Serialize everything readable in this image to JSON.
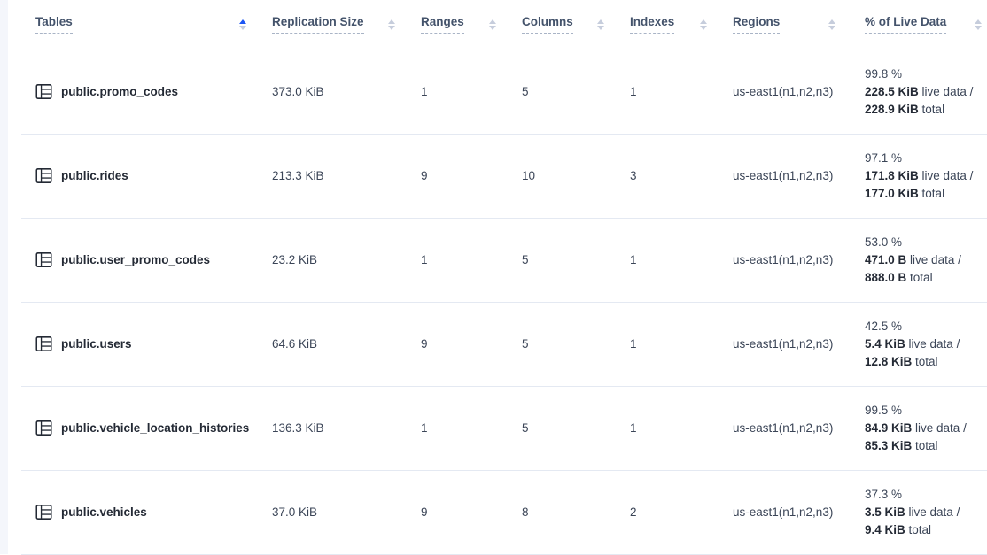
{
  "colors": {
    "accent_blue": "#1d56f4",
    "header_text": "#44536b",
    "body_text": "#3b4557",
    "table_name_text": "#242a35",
    "row_border": "#e4e9f2",
    "dashed_underline": "#a9b4c6",
    "inactive_sort_arrow": "#c6cddc",
    "left_strip": "#f4f6fb"
  },
  "table": {
    "columns": [
      {
        "label": "Tables",
        "sort": "asc"
      },
      {
        "label": "Replication Size",
        "sort": "none"
      },
      {
        "label": "Ranges",
        "sort": "none"
      },
      {
        "label": "Columns",
        "sort": "none"
      },
      {
        "label": "Indexes",
        "sort": "none"
      },
      {
        "label": "Regions",
        "sort": "none"
      },
      {
        "label": "% of Live Data",
        "sort": "none"
      }
    ],
    "rows": [
      {
        "icon": "table-icon",
        "name": "public.promo_codes",
        "replication_size": "373.0 KiB",
        "ranges": "1",
        "columns": "5",
        "indexes": "1",
        "regions": "us-east1(n1,n2,n3)",
        "live": {
          "percent": "99.8 %",
          "live_size": "228.5 KiB",
          "live_label": " live data /",
          "total_size": "228.9 KiB",
          "total_label": " total"
        }
      },
      {
        "icon": "table-icon",
        "name": "public.rides",
        "replication_size": "213.3 KiB",
        "ranges": "9",
        "columns": "10",
        "indexes": "3",
        "regions": "us-east1(n1,n2,n3)",
        "live": {
          "percent": "97.1 %",
          "live_size": "171.8 KiB",
          "live_label": " live data /",
          "total_size": "177.0 KiB",
          "total_label": " total"
        }
      },
      {
        "icon": "table-icon",
        "name": "public.user_promo_codes",
        "replication_size": "23.2 KiB",
        "ranges": "1",
        "columns": "5",
        "indexes": "1",
        "regions": "us-east1(n1,n2,n3)",
        "live": {
          "percent": "53.0 %",
          "live_size": "471.0 B",
          "live_label": " live data /",
          "total_size": "888.0 B",
          "total_label": " total"
        }
      },
      {
        "icon": "table-icon",
        "name": "public.users",
        "replication_size": "64.6 KiB",
        "ranges": "9",
        "columns": "5",
        "indexes": "1",
        "regions": "us-east1(n1,n2,n3)",
        "live": {
          "percent": "42.5 %",
          "live_size": "5.4 KiB",
          "live_label": " live data /",
          "total_size": "12.8 KiB",
          "total_label": " total"
        }
      },
      {
        "icon": "table-icon",
        "name": "public.vehicle_location_histories",
        "replication_size": "136.3 KiB",
        "ranges": "1",
        "columns": "5",
        "indexes": "1",
        "regions": "us-east1(n1,n2,n3)",
        "live": {
          "percent": "99.5 %",
          "live_size": "84.9 KiB",
          "live_label": " live data /",
          "total_size": "85.3 KiB",
          "total_label": " total"
        }
      },
      {
        "icon": "table-icon",
        "name": "public.vehicles",
        "replication_size": "37.0 KiB",
        "ranges": "9",
        "columns": "8",
        "indexes": "2",
        "regions": "us-east1(n1,n2,n3)",
        "live": {
          "percent": "37.3 %",
          "live_size": "3.5 KiB",
          "live_label": " live data /",
          "total_size": "9.4 KiB",
          "total_label": " total"
        }
      }
    ]
  }
}
